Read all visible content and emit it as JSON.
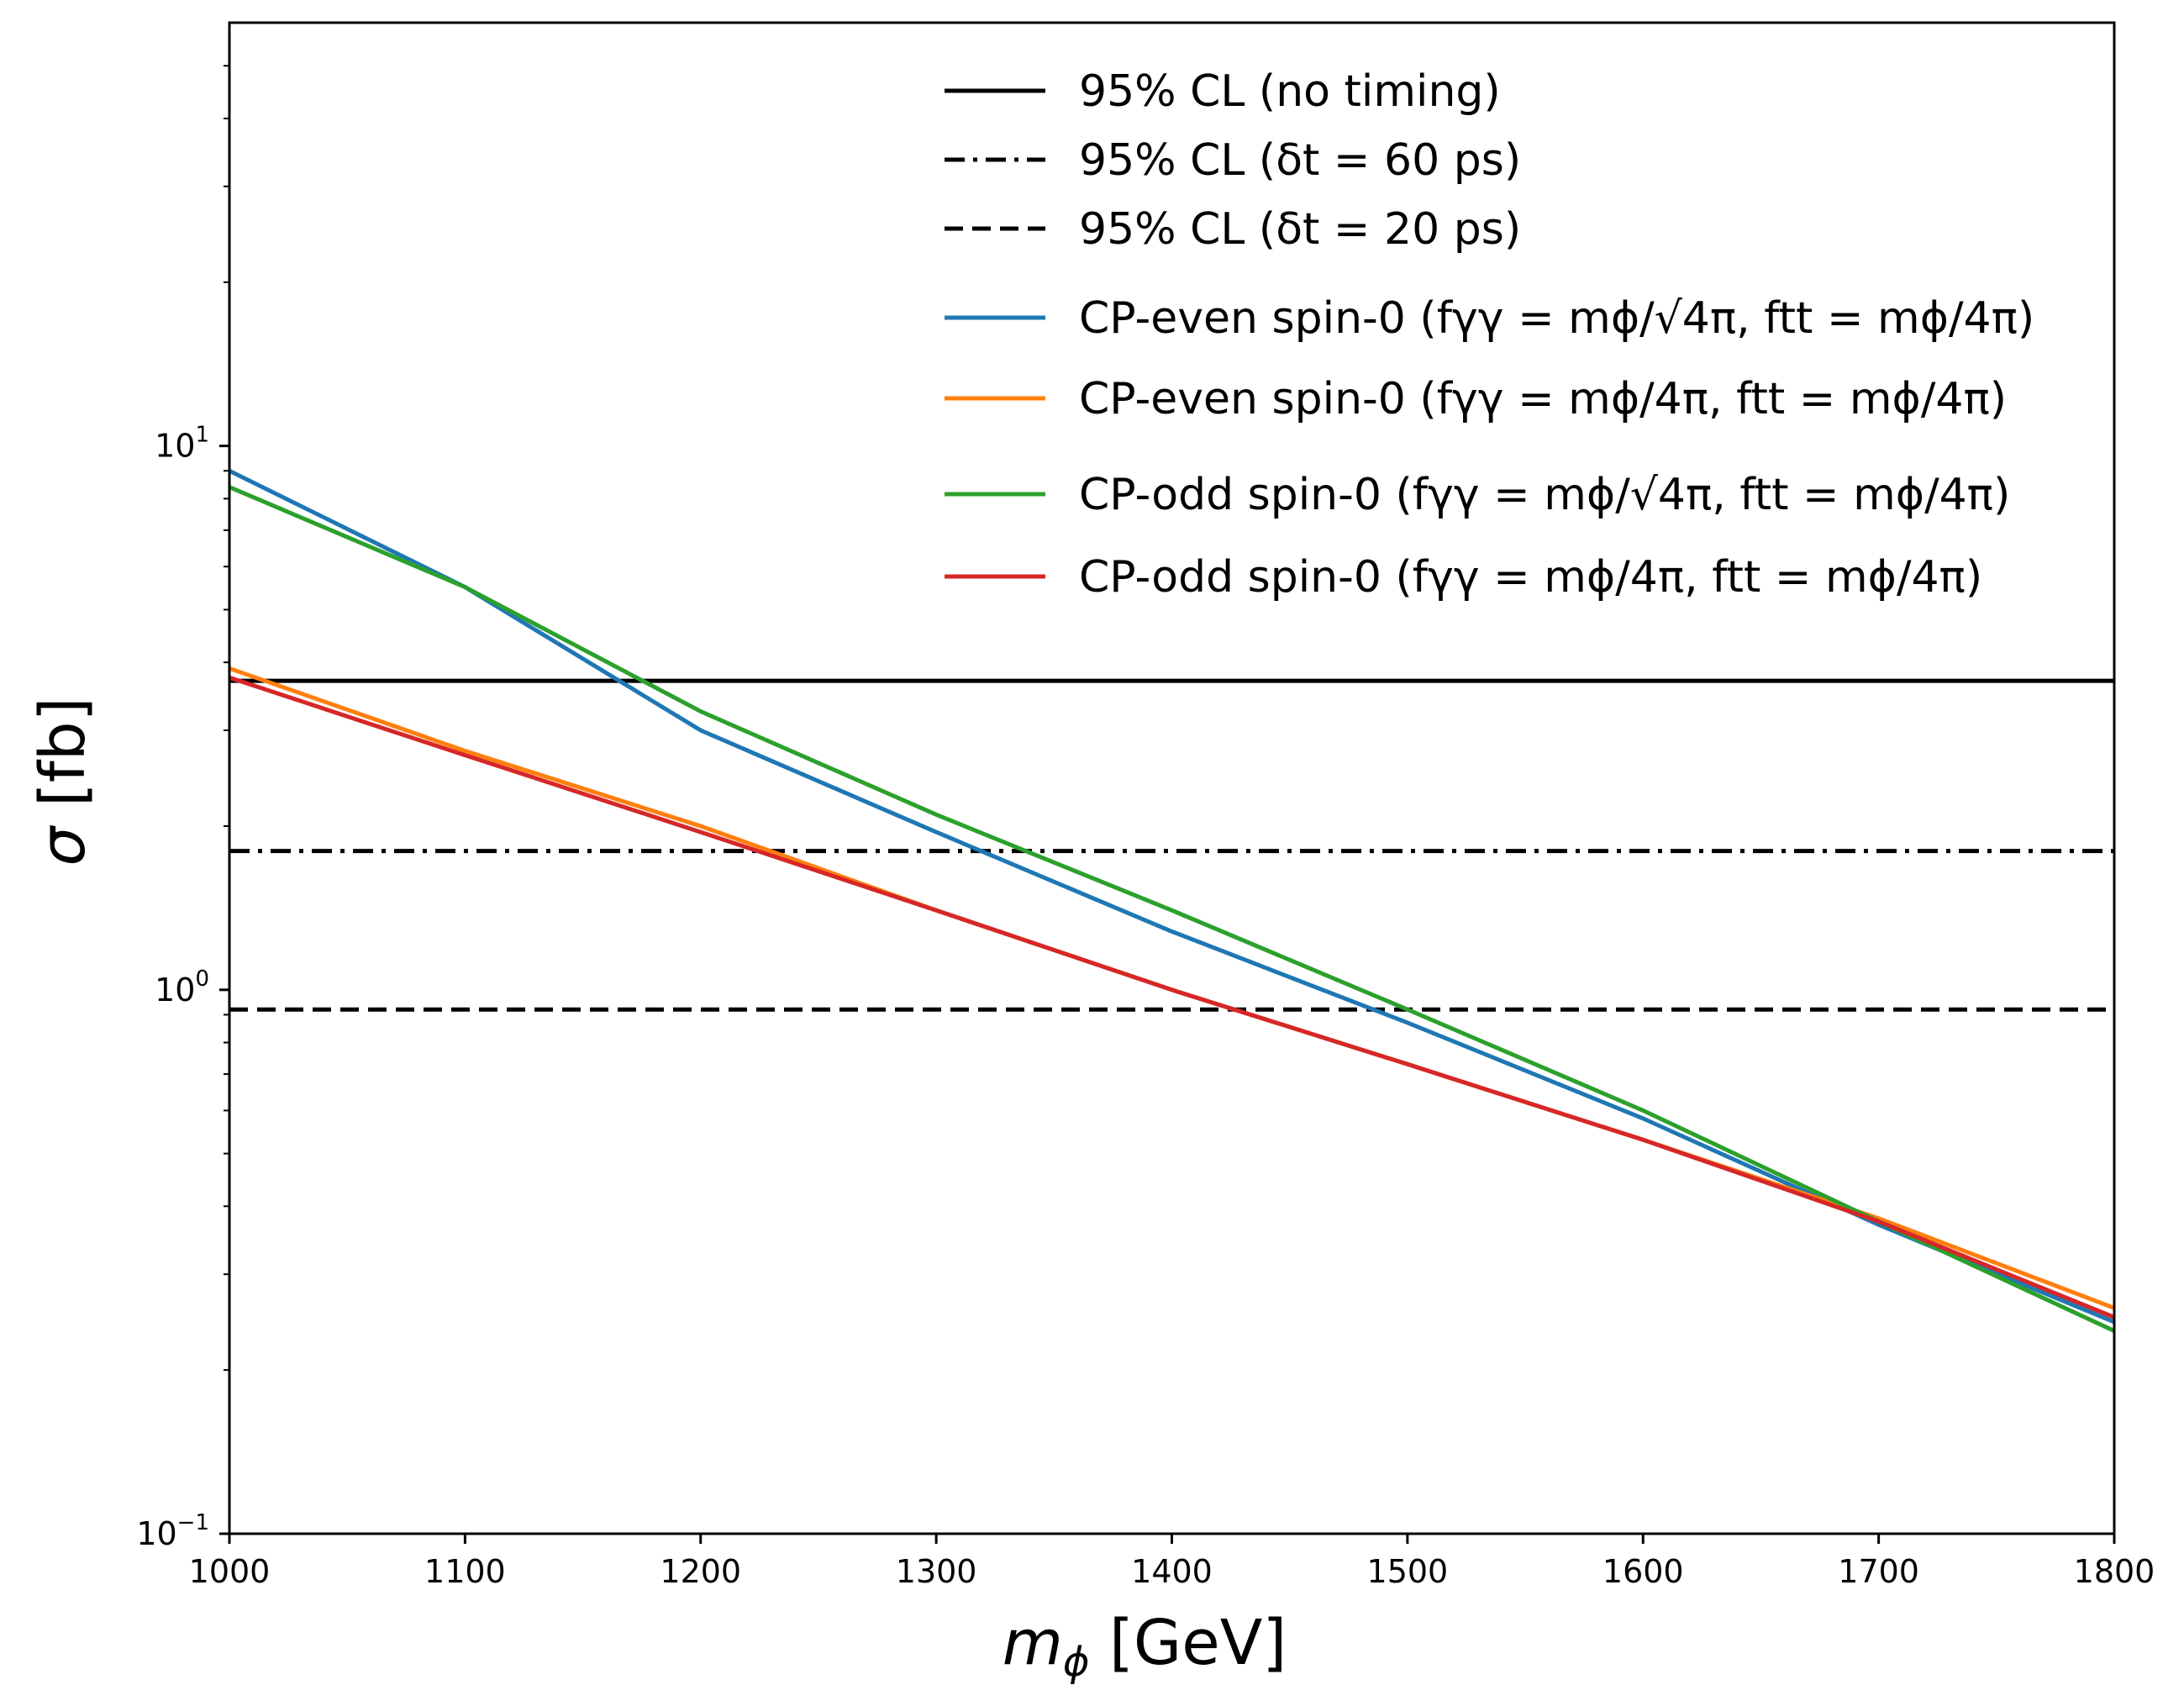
{
  "chart_data": {
    "type": "line",
    "xlabel_var": "m",
    "xlabel_sub": "ϕ",
    "xlabel_unit": "[GeV]",
    "ylabel_var": "σ",
    "ylabel_unit": "[fb]",
    "xlim": [
      1000,
      1800
    ],
    "ylim": [
      0.1,
      60
    ],
    "yscale": "log",
    "legend_position": "top-right",
    "x_ticks": [
      1000,
      1100,
      1200,
      1300,
      1400,
      1500,
      1600,
      1700,
      1800
    ],
    "x_tick_labels": [
      "1000",
      "1100",
      "1200",
      "1300",
      "1400",
      "1500",
      "1600",
      "1700",
      "1800"
    ],
    "y_ticks": [
      {
        "value": 10,
        "base": "10",
        "exp": "1"
      },
      {
        "value": 1,
        "base": "10",
        "exp": "0"
      },
      {
        "value": 0.1,
        "base": "10",
        "exp": "−1"
      }
    ],
    "series": [
      {
        "name": "95% CL (no timing)",
        "color": "#000000",
        "dash": "solid",
        "x": [
          1000,
          1800
        ],
        "y": [
          3.7,
          3.7
        ]
      },
      {
        "name": "95% CL (δt = 60 ps)",
        "color": "#000000",
        "dash": "dashdot",
        "x": [
          1000,
          1800
        ],
        "y": [
          1.8,
          1.8
        ]
      },
      {
        "name": "95% CL (δt = 20 ps)",
        "color": "#000000",
        "dash": "dashed",
        "x": [
          1000,
          1800
        ],
        "y": [
          0.92,
          0.92
        ]
      },
      {
        "name": "CP-even spin-0 (fγγ = mϕ/√4π, ftt = mϕ/4π)",
        "color": "#1f77b4",
        "dash": "solid",
        "x": [
          1000,
          1100,
          1200,
          1300,
          1400,
          1500,
          1600,
          1700,
          1800
        ],
        "y": [
          9.0,
          5.5,
          3.0,
          1.95,
          1.28,
          0.87,
          0.58,
          0.37,
          0.245
        ]
      },
      {
        "name": "CP-even spin-0 (fγγ = mϕ/4π, ftt = mϕ/4π)",
        "color": "#ff7f0e",
        "dash": "solid",
        "x": [
          1000,
          1100,
          1200,
          1300,
          1400,
          1500,
          1600,
          1700,
          1800
        ],
        "y": [
          3.9,
          2.75,
          2.0,
          1.4,
          1.0,
          0.73,
          0.53,
          0.38,
          0.26
        ]
      },
      {
        "name": "CP-odd spin-0 (fγγ = mϕ/√4π, ftt = mϕ/4π)",
        "color": "#2ca02c",
        "dash": "solid",
        "x": [
          1000,
          1100,
          1200,
          1300,
          1400,
          1500,
          1600,
          1700,
          1800
        ],
        "y": [
          8.4,
          5.5,
          3.25,
          2.1,
          1.4,
          0.92,
          0.6,
          0.375,
          0.236
        ]
      },
      {
        "name": "CP-odd spin-0 (fγγ = mϕ/4π, ftt = mϕ/4π)",
        "color": "#d62728",
        "dash": "solid",
        "x": [
          1000,
          1100,
          1200,
          1300,
          1400,
          1500,
          1600,
          1700,
          1800
        ],
        "y": [
          3.75,
          2.7,
          1.95,
          1.4,
          1.0,
          0.73,
          0.53,
          0.375,
          0.25
        ]
      }
    ],
    "legend": [
      {
        "label": "95% CL (no timing)"
      },
      {
        "label": "95% CL (δt = 60 ps)"
      },
      {
        "label": "95% CL (δt = 20 ps)"
      },
      {
        "label": "CP-even spin-0 (fγγ = mϕ/√4π, ftt = mϕ/4π)"
      },
      {
        "label": "CP-even spin-0 (fγγ = mϕ/4π, ftt = mϕ/4π)"
      },
      {
        "label": "CP-odd spin-0 (fγγ = mϕ/√4π, ftt = mϕ/4π)"
      },
      {
        "label": "CP-odd spin-0 (fγγ = mϕ/4π, ftt = mϕ/4π)"
      }
    ]
  }
}
